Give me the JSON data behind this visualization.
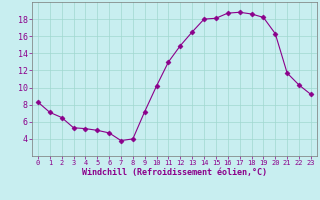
{
  "x": [
    0,
    1,
    2,
    3,
    4,
    5,
    6,
    7,
    8,
    9,
    10,
    11,
    12,
    13,
    14,
    15,
    16,
    17,
    18,
    19,
    20,
    21,
    22,
    23
  ],
  "y": [
    8.3,
    7.1,
    6.5,
    5.3,
    5.2,
    5.0,
    4.7,
    3.8,
    4.0,
    7.2,
    10.2,
    13.0,
    14.9,
    16.5,
    18.0,
    18.1,
    18.7,
    18.8,
    18.6,
    18.2,
    16.3,
    11.7,
    10.3,
    9.2
  ],
  "line_color": "#8b008b",
  "marker": "D",
  "marker_size": 2.5,
  "bg_color": "#c8eef0",
  "grid_color": "#a0d8d0",
  "xlabel": "Windchill (Refroidissement éolien,°C)",
  "xlabel_color": "#8b008b",
  "tick_color": "#8b008b",
  "ylim": [
    2,
    20
  ],
  "xlim": [
    -0.5,
    23.5
  ],
  "yticks": [
    4,
    6,
    8,
    10,
    12,
    14,
    16,
    18
  ],
  "xticks": [
    0,
    1,
    2,
    3,
    4,
    5,
    6,
    7,
    8,
    9,
    10,
    11,
    12,
    13,
    14,
    15,
    16,
    17,
    18,
    19,
    20,
    21,
    22,
    23
  ],
  "xlabel_fontsize": 6.0,
  "xtick_fontsize": 5.0,
  "ytick_fontsize": 6.0
}
